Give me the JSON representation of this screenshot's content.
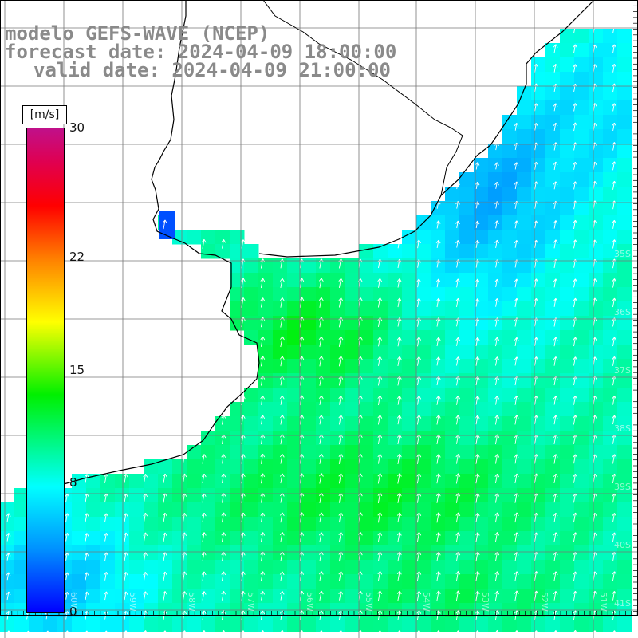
{
  "header": {
    "model": "modelo GEFS-WAVE (NCEP)",
    "forecast": "forecast date: 2024-04-09 18:00:00",
    "valid": "valid date: 2024-04-09 21:00:00"
  },
  "colorbar": {
    "unit": "[m/s]",
    "ticks": [
      "30",
      "22",
      "15",
      "8",
      "0"
    ],
    "tick_values": [
      30,
      22,
      15,
      8,
      0
    ],
    "min": 0,
    "max": 30,
    "colors": [
      "#0000ff",
      "#0090ff",
      "#00ffff",
      "#00f000",
      "#ffff00",
      "#ff8000",
      "#ff0000",
      "#c0108a"
    ]
  },
  "map": {
    "lat_labels": [
      "35S",
      "36S",
      "37S",
      "38S",
      "39S",
      "40S",
      "41S"
    ],
    "lon_labels": [
      "60W",
      "59W",
      "58W",
      "57W",
      "56W",
      "55W",
      "54W",
      "53W",
      "52W",
      "51W"
    ],
    "land_color": "#ffffff",
    "coast_color": "#000000",
    "grid_color": "#777777",
    "arrow_color": "#ffffff",
    "arrow_direction": "north-northeast"
  }
}
